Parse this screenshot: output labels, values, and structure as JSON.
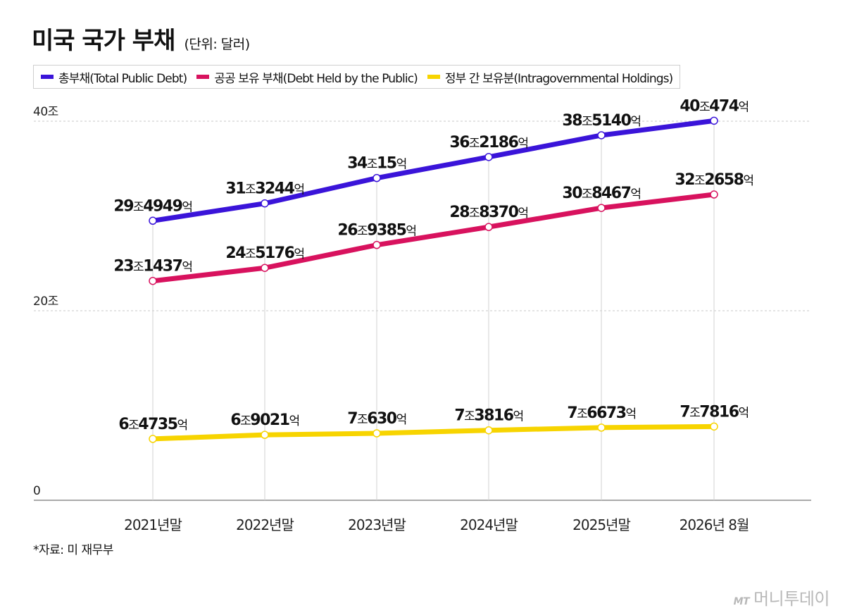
{
  "header": {
    "title": "미국 국가 부채",
    "unit": "(단위: 달러)"
  },
  "source": "*자료: 미 재무부",
  "brand": {
    "mark": "MT",
    "name": "머니투데이"
  },
  "chart_data": {
    "type": "line",
    "title": "미국 국가 부채",
    "categories": [
      "2021년말",
      "2022년말",
      "2023년말",
      "2024년말",
      "2025년말",
      "2026년 8월"
    ],
    "ylim": [
      0,
      40
    ],
    "yticks": [
      {
        "value": 0,
        "label": "0"
      },
      {
        "value": 20,
        "label": "20조"
      },
      {
        "value": 40,
        "label": "40조"
      }
    ],
    "grid": true,
    "legend_position": "top-left",
    "series": [
      {
        "name": "총부채(Total Public Debt)",
        "color": "#3a14d9",
        "values": [
          29.4949,
          31.3244,
          34.0015,
          36.2186,
          38.514,
          40.0474
        ],
        "labels": [
          [
            "29",
            "조",
            "4949",
            "억"
          ],
          [
            "31",
            "조",
            "3244",
            "억"
          ],
          [
            "34",
            "조",
            "15",
            "억"
          ],
          [
            "36",
            "조",
            "2186",
            "억"
          ],
          [
            "38",
            "조",
            "5140",
            "억"
          ],
          [
            "40",
            "조",
            "474",
            "억"
          ]
        ]
      },
      {
        "name": "공공 보유 부채(Debt Held by the Public)",
        "color": "#d8125e",
        "values": [
          23.1437,
          24.5176,
          26.9385,
          28.837,
          30.8467,
          32.2658
        ],
        "labels": [
          [
            "23",
            "조",
            "1437",
            "억"
          ],
          [
            "24",
            "조",
            "5176",
            "억"
          ],
          [
            "26",
            "조",
            "9385",
            "억"
          ],
          [
            "28",
            "조",
            "8370",
            "억"
          ],
          [
            "30",
            "조",
            "8467",
            "억"
          ],
          [
            "32",
            "조",
            "2658",
            "억"
          ]
        ]
      },
      {
        "name": "정부 간 보유분(Intragovernmental Holdings)",
        "color": "#f7d400",
        "values": [
          6.4735,
          6.9021,
          7.063,
          7.3816,
          7.6673,
          7.7816
        ],
        "labels": [
          [
            "6",
            "조",
            "4735",
            "억"
          ],
          [
            "6",
            "조",
            "9021",
            "억"
          ],
          [
            "7",
            "조",
            "630",
            "억"
          ],
          [
            "7",
            "조",
            "3816",
            "억"
          ],
          [
            "7",
            "조",
            "6673",
            "억"
          ],
          [
            "7",
            "조",
            "7816",
            "억"
          ]
        ]
      }
    ]
  }
}
